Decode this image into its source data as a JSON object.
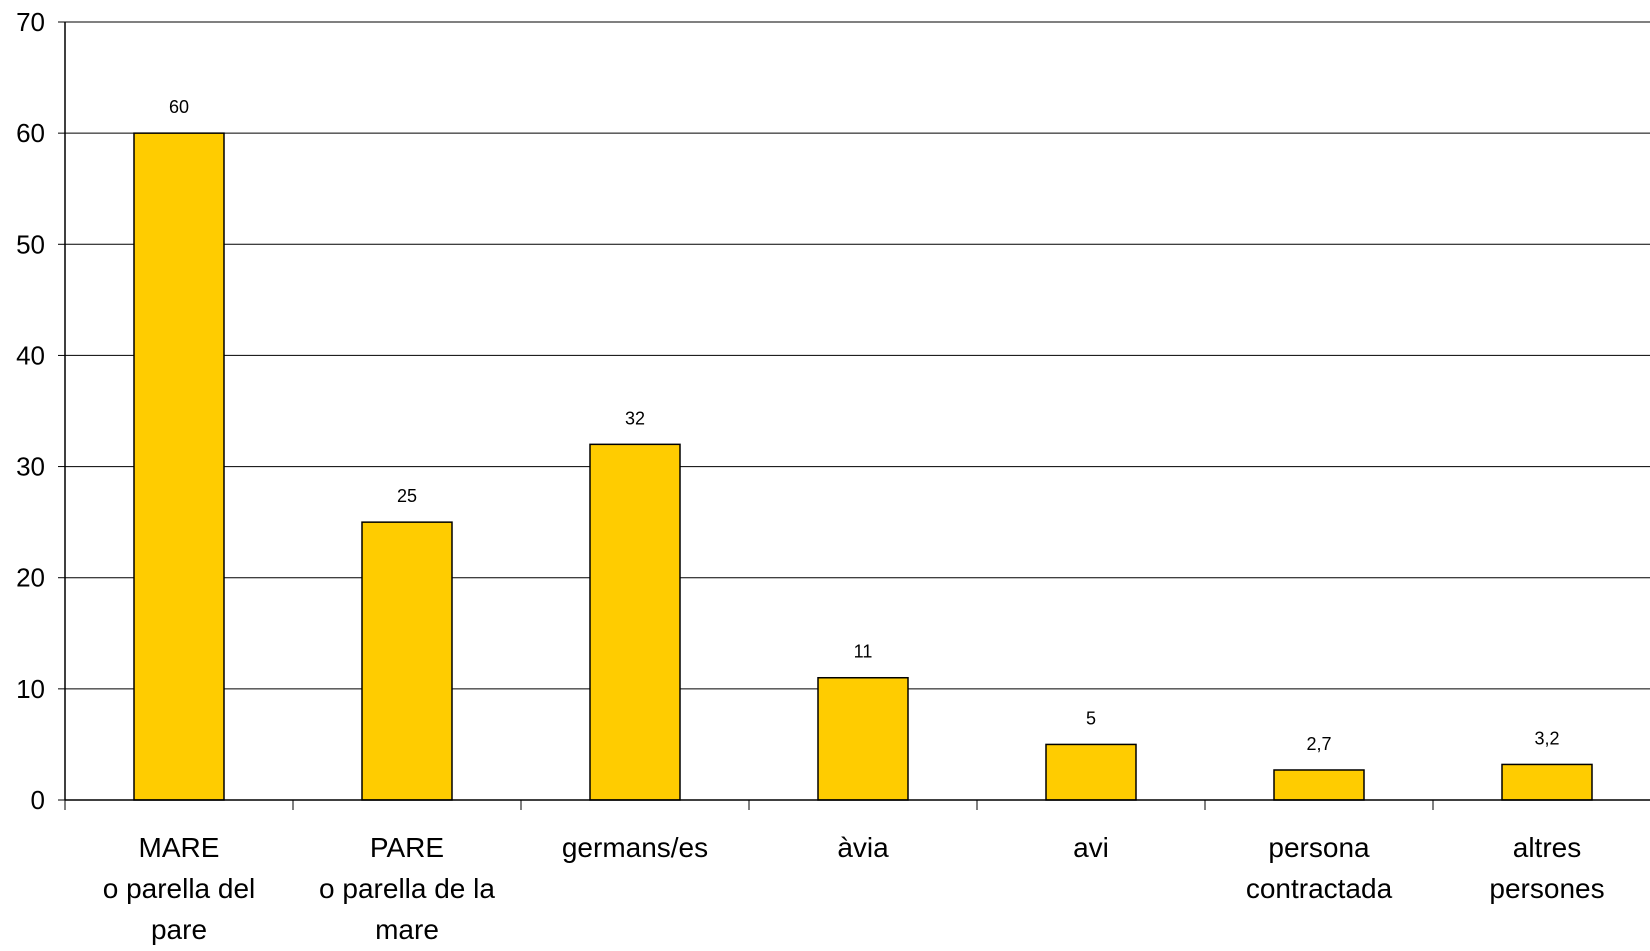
{
  "chart_data": {
    "type": "bar",
    "title": "",
    "xlabel": "",
    "ylabel": "",
    "categories": [
      [
        "MARE",
        "o parella del",
        "pare"
      ],
      [
        "PARE",
        "o parella de la",
        "mare"
      ],
      [
        "germans/es"
      ],
      [
        "àvia"
      ],
      [
        "avi"
      ],
      [
        "persona",
        "contractada"
      ],
      [
        "altres",
        "persones"
      ]
    ],
    "values": [
      60,
      25,
      32,
      11,
      5,
      2.7,
      3.2
    ],
    "data_labels": [
      "60",
      "25",
      "32",
      "11",
      "5",
      "2,7",
      "3,2"
    ],
    "ylim": [
      0,
      70
    ],
    "yticks": [
      "0",
      "10",
      "20",
      "30",
      "40",
      "50",
      "60",
      "70"
    ],
    "grid": true,
    "legend": "none",
    "colors": {
      "bar_fill": "#FFCC00",
      "bar_stroke": "#000000",
      "grid": "#000000",
      "axis": "#000000"
    }
  }
}
